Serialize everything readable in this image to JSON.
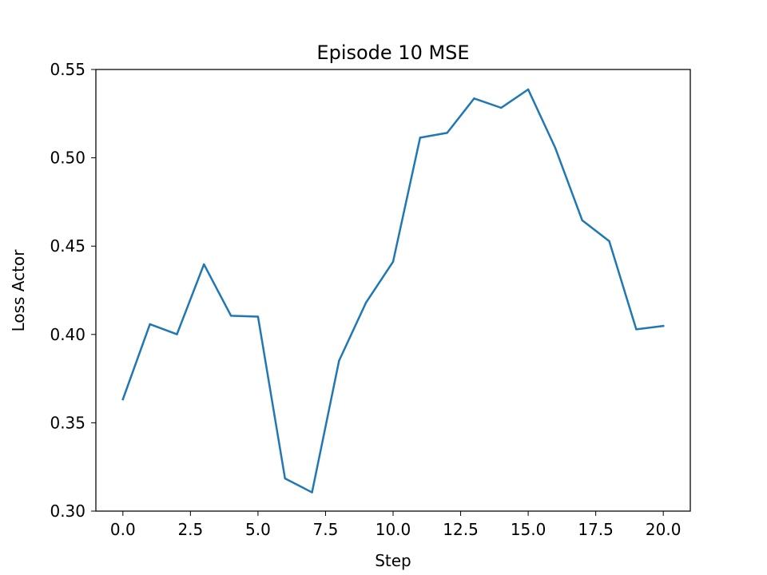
{
  "chart_data": {
    "type": "line",
    "title": "Episode 10 MSE",
    "xlabel": "Step",
    "ylabel": "Loss Actor",
    "xlim": [
      -1.0,
      21.0
    ],
    "ylim": [
      0.3,
      0.55
    ],
    "xticks": [
      0.0,
      2.5,
      5.0,
      7.5,
      10.0,
      12.5,
      15.0,
      17.5,
      20.0
    ],
    "xtick_labels": [
      "0.0",
      "2.5",
      "5.0",
      "7.5",
      "10.0",
      "12.5",
      "15.0",
      "17.5",
      "20.0"
    ],
    "yticks": [
      0.3,
      0.35,
      0.4,
      0.45,
      0.5,
      0.55
    ],
    "ytick_labels": [
      "0.30",
      "0.35",
      "0.40",
      "0.45",
      "0.50",
      "0.55"
    ],
    "grid": false,
    "series": [
      {
        "color": "#1f77b4",
        "x": [
          0,
          1,
          2,
          3,
          4,
          5,
          6,
          7,
          8,
          9,
          10,
          11,
          12,
          13,
          14,
          15,
          16,
          17,
          18,
          19,
          20
        ],
        "y": [
          0.3633,
          0.4058,
          0.4001,
          0.4397,
          0.4106,
          0.4101,
          0.3185,
          0.3106,
          0.3851,
          0.4181,
          0.4412,
          0.5114,
          0.5141,
          0.5336,
          0.5283,
          0.5387,
          0.5057,
          0.4646,
          0.4528,
          0.4029,
          0.4048
        ]
      }
    ]
  }
}
